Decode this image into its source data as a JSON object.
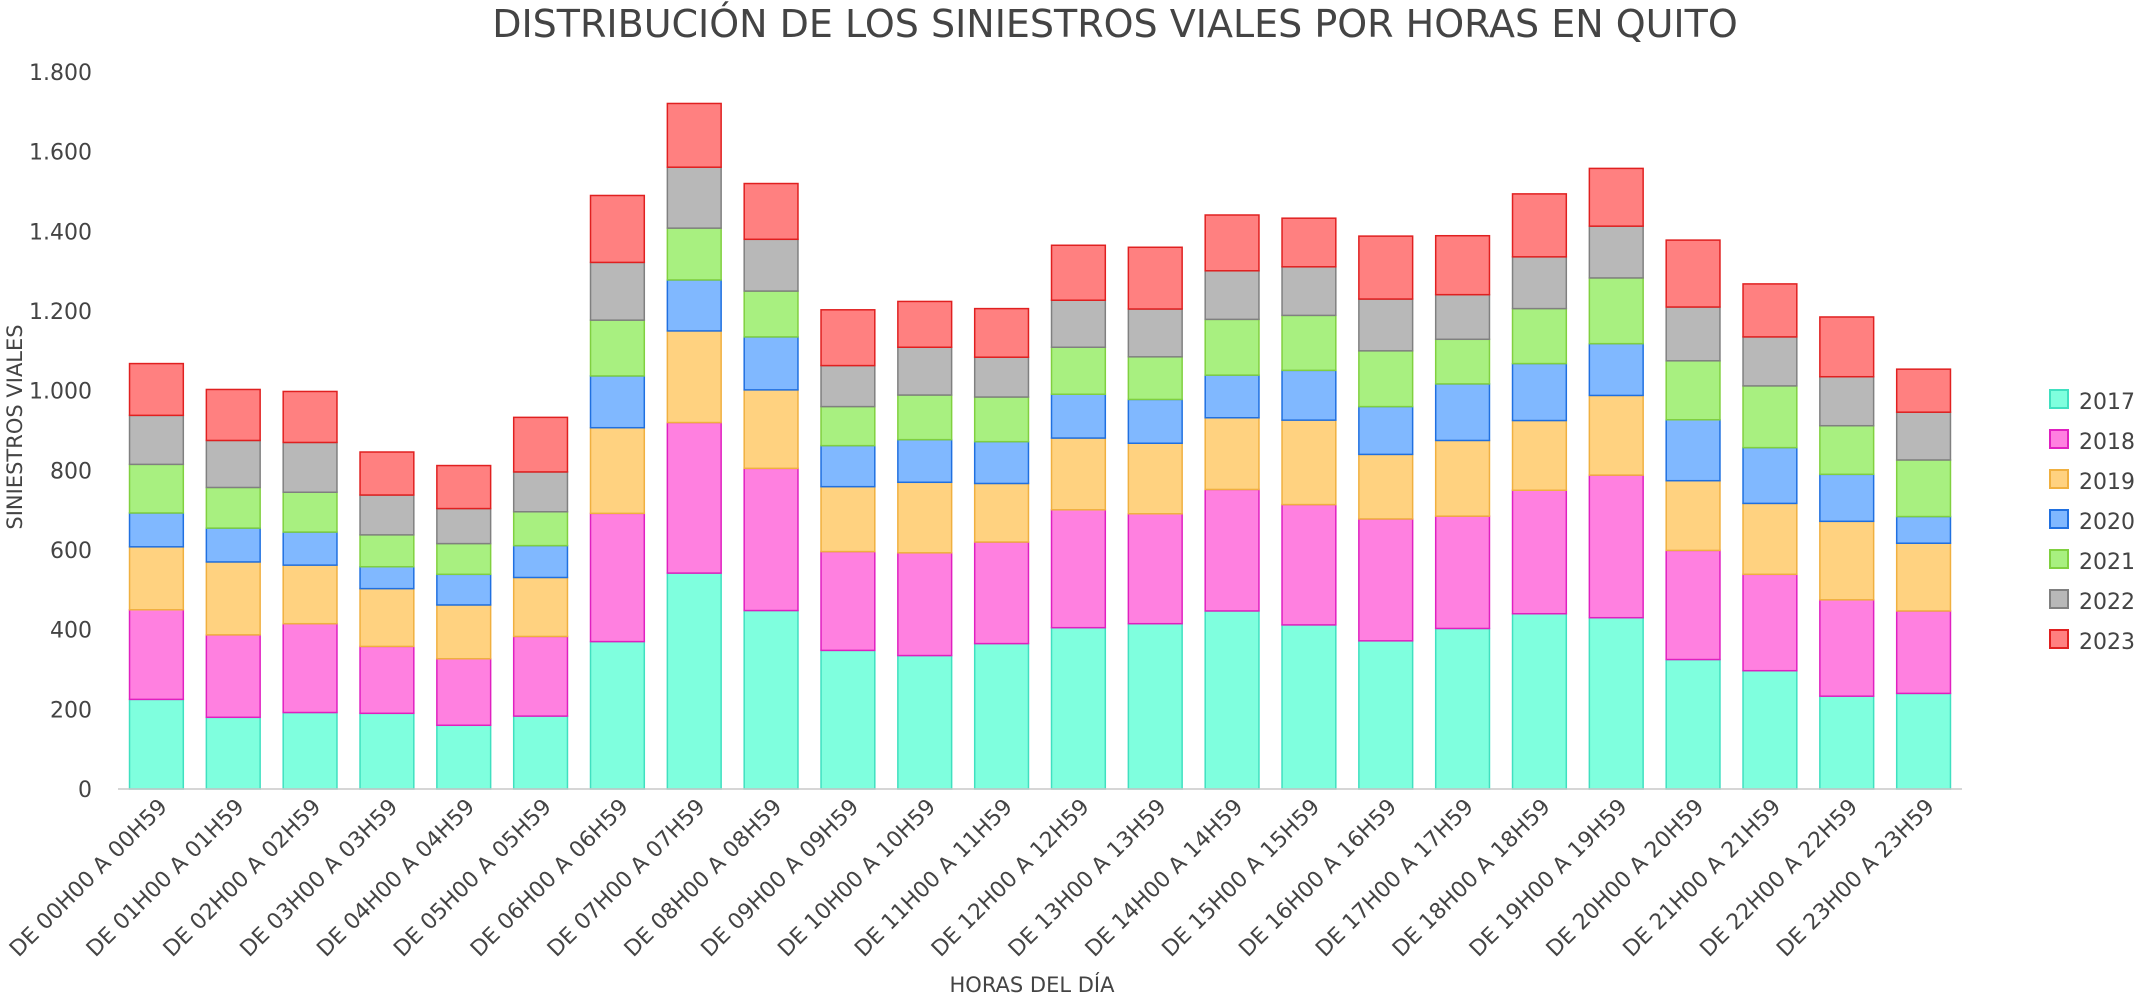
{
  "chart_data": {
    "type": "bar",
    "stacked": true,
    "title": "DISTRIBUCIÓN DE LOS SINIESTROS VIALES POR HORAS EN QUITO",
    "xlabel": "HORAS DEL DÍA",
    "ylabel": "SINIESTROS VIALES",
    "ylim": [
      0,
      1800
    ],
    "yticks": [
      0,
      200,
      400,
      600,
      800,
      1000,
      1200,
      1400,
      1600,
      1800
    ],
    "ytick_labels": [
      "0",
      "200",
      "400",
      "600",
      "800",
      "1.000",
      "1.200",
      "1.400",
      "1.600",
      "1.800"
    ],
    "grid": false,
    "legend_position": "right",
    "categories": [
      "DE 00H00 A 00H59",
      "DE 01H00 A 01H59",
      "DE 02H00 A 02H59",
      "DE 03H00 A 03H59",
      "DE 04H00 A 04H59",
      "DE 05H00 A 05H59",
      "DE 06H00 A 06H59",
      "DE 07H00 A 07H59",
      "DE 08H00 A 08H59",
      "DE 09H00 A 09H59",
      "DE 10H00 A 10H59",
      "DE 11H00 A 11H59",
      "DE 12H00 A 12H59",
      "DE 13H00 A 13H59",
      "DE 14H00 A 14H59",
      "DE 15H00 A 15H59",
      "DE 16H00 A 16H59",
      "DE 17H00 A 17H59",
      "DE 18H00 A 18H59",
      "DE 19H00 A 19H59",
      "DE 20H00 A 20H59",
      "DE 21H00 A 21H59",
      "DE 22H00 A 22H59",
      "DE 23H00 A 23H59"
    ],
    "series": [
      {
        "name": "2017",
        "fill": "#7fffde",
        "stroke": "#40e0c0",
        "values": [
          225,
          180,
          192,
          190,
          160,
          183,
          370,
          542,
          448,
          348,
          335,
          365,
          405,
          415,
          447,
          412,
          372,
          403,
          440,
          430,
          325,
          297,
          233,
          240
        ]
      },
      {
        "name": "2018",
        "fill": "#ff80e0",
        "stroke": "#e020c0",
        "values": [
          225,
          207,
          223,
          168,
          167,
          200,
          322,
          378,
          357,
          248,
          258,
          255,
          296,
          276,
          305,
          302,
          306,
          282,
          310,
          358,
          274,
          242,
          242,
          207
        ]
      },
      {
        "name": "2019",
        "fill": "#ffd280",
        "stroke": "#f0b040",
        "values": [
          158,
          183,
          147,
          145,
          135,
          148,
          215,
          230,
          197,
          163,
          177,
          147,
          180,
          177,
          180,
          212,
          162,
          190,
          175,
          200,
          175,
          178,
          197,
          170
        ]
      },
      {
        "name": "2020",
        "fill": "#80b8ff",
        "stroke": "#2070e0",
        "values": [
          85,
          85,
          83,
          55,
          77,
          80,
          130,
          128,
          133,
          103,
          107,
          105,
          110,
          110,
          107,
          125,
          120,
          142,
          143,
          130,
          153,
          140,
          118,
          67
        ]
      },
      {
        "name": "2021",
        "fill": "#a8f080",
        "stroke": "#80d040",
        "values": [
          122,
          102,
          100,
          80,
          77,
          85,
          140,
          130,
          115,
          98,
          112,
          112,
          118,
          107,
          140,
          138,
          140,
          112,
          138,
          165,
          148,
          155,
          122,
          142
        ]
      },
      {
        "name": "2022",
        "fill": "#b8b8b8",
        "stroke": "#808080",
        "values": [
          123,
          118,
          125,
          100,
          88,
          100,
          145,
          153,
          130,
          103,
          120,
          100,
          118,
          120,
          122,
          122,
          130,
          112,
          130,
          130,
          135,
          123,
          123,
          120
        ]
      },
      {
        "name": "2023",
        "fill": "#ff8080",
        "stroke": "#e02020",
        "values": [
          130,
          128,
          128,
          108,
          108,
          137,
          168,
          160,
          140,
          140,
          115,
          122,
          138,
          155,
          140,
          122,
          158,
          148,
          158,
          145,
          168,
          133,
          150,
          108
        ]
      }
    ]
  }
}
